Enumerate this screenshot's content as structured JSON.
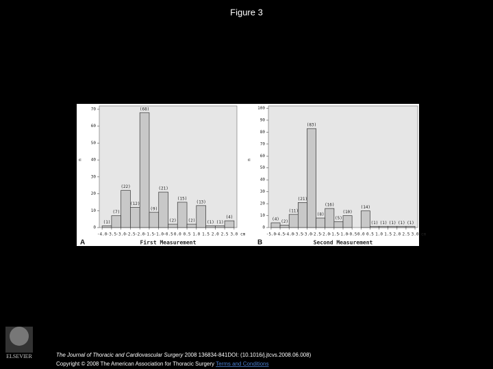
{
  "title": "Figure 3",
  "chart_data": [
    {
      "type": "histogram",
      "panel": "A",
      "xlabel": "First Measurement",
      "unit": "cm",
      "ylabel": "n",
      "bins": [
        -4.0,
        -3.5,
        -3.0,
        -2.5,
        -2.0,
        -1.5,
        -1.0,
        -0.5,
        0.0,
        0.5,
        1.0,
        1.5,
        2.0,
        2.5,
        3.0
      ],
      "values": [
        1,
        7,
        22,
        12,
        68,
        9,
        21,
        2,
        15,
        2,
        13,
        1,
        1,
        4
      ],
      "value_labels": [
        "(1)",
        "(7)",
        "(22)",
        "(12)",
        "(68)",
        "(9)",
        "(21)",
        "(2)",
        "(15)",
        "(2)",
        "(13)",
        "(1)",
        "(1)",
        "(4)"
      ],
      "color": "#c8c8c8",
      "xticks": [
        {
          "value": -4,
          "label": "-4.0"
        },
        -3.5,
        {
          "value": -3,
          "label": "-3.0"
        },
        -2.5,
        {
          "value": -2,
          "label": "-2.0"
        },
        -1.5,
        {
          "value": -1,
          "label": "-1.0"
        },
        -0.5,
        {
          "value": 0,
          "label": "0.0"
        },
        0.5,
        {
          "value": 1,
          "label": "1.0"
        },
        1.5,
        {
          "value": 2,
          "label": "2.0"
        },
        2.5,
        {
          "value": 3,
          "label": "3.0"
        }
      ],
      "xlim": [
        -4.15,
        3.15
      ],
      "ylim": [
        0,
        72
      ],
      "yticks": [
        0,
        10,
        20,
        30,
        40,
        50,
        60,
        70
      ]
    },
    {
      "type": "histogram",
      "panel": "B",
      "xlabel": "Second Measurement",
      "unit": "cm",
      "ylabel": "n",
      "bins": [
        -5.0,
        -4.5,
        -4.0,
        -3.5,
        -3.0,
        -2.5,
        -2.0,
        -1.5,
        -1.0,
        -0.5,
        0.0,
        0.5,
        1.0,
        1.5,
        2.0,
        2.5,
        3.0
      ],
      "values": [
        4,
        2,
        11,
        21,
        83,
        8,
        16,
        5,
        10,
        0,
        14,
        1,
        1,
        1,
        1,
        1
      ],
      "value_labels": [
        "(4)",
        "(2)",
        "(11)",
        "(21)",
        "(83)",
        "(8)",
        "(16)",
        "(5)",
        "(10)",
        null,
        "(14)",
        "(1)",
        "(1)",
        "(1)",
        "(1)",
        "(1)"
      ],
      "color": "#c8c8c8",
      "xticks": [
        {
          "value": -5,
          "label": "-5.0"
        },
        -4.5,
        {
          "value": -4,
          "label": "-4.0"
        },
        -3.5,
        {
          "value": -3,
          "label": "-3.0"
        },
        -2.5,
        {
          "value": -2,
          "label": "-2.0"
        },
        -1.5,
        {
          "value": -1,
          "label": "-1.0"
        },
        -0.5,
        {
          "value": 0,
          "label": "0.0"
        },
        0.5,
        {
          "value": 1,
          "label": "1.0"
        },
        1.5,
        {
          "value": 2,
          "label": "2.0"
        },
        2.5,
        {
          "value": 3,
          "label": "3.0"
        }
      ],
      "xlim": [
        -5.15,
        3.15
      ],
      "ylim": [
        0,
        102
      ],
      "yticks": [
        0,
        10,
        20,
        30,
        40,
        50,
        60,
        70,
        80,
        90,
        100
      ]
    }
  ],
  "footer": {
    "journal": "The Journal of Thoracic and Cardiovascular Surgery",
    "citation": "2008 136834-841DOI: (10.1016/j.jtcvs.2008.06.008)",
    "copyright": "Copyright © 2008 The American Association for Thoracic Surgery",
    "link": "Terms and Conditions"
  },
  "logo": "ELSEVIER"
}
